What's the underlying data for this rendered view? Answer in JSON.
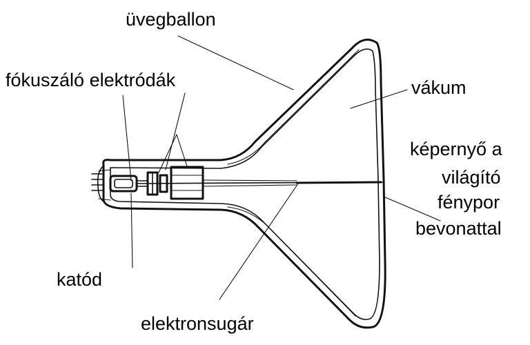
{
  "labels": {
    "glass_bulb": "üvegballon",
    "focusing_electrodes": "fókuszáló elektródák",
    "vacuum": "vákum",
    "screen_line1": "képernyő a",
    "screen_line2": "világító",
    "screen_line3": "fénypor",
    "screen_line4": "bevonattal",
    "cathode": "katód",
    "electron_beam": "elektronsugár"
  }
}
